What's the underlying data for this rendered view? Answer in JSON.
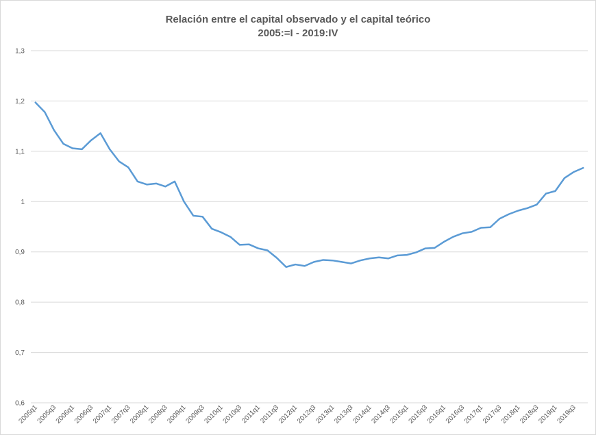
{
  "chart_data": {
    "type": "line",
    "title": "Relación entre el capital observado y el capital teórico",
    "subtitle": "2005:=I - 2019:IV",
    "xlabel": "",
    "ylabel": "",
    "ylim": [
      0.6,
      1.3
    ],
    "yticks": [
      "0,6",
      "0,7",
      "0,8",
      "0,9",
      "1",
      "1,1",
      "1,2",
      "1,3"
    ],
    "ytick_values": [
      0.6,
      0.7,
      0.8,
      0.9,
      1.0,
      1.1,
      1.2,
      1.3
    ],
    "grid": true,
    "legend": "none",
    "line_color": "#5b9bd5",
    "categories": [
      "2005q1",
      "2005q2",
      "2005q3",
      "2005q4",
      "2006q1",
      "2006q2",
      "2006q3",
      "2006q4",
      "2007q1",
      "2007q2",
      "2007q3",
      "2007q4",
      "2008q1",
      "2008q2",
      "2008q3",
      "2008q4",
      "2009q1",
      "2009q2",
      "2009q3",
      "2009q4",
      "2010q1",
      "2010q2",
      "2010q3",
      "2010q4",
      "2011q1",
      "2011q2",
      "2011q3",
      "2011q4",
      "2012q1",
      "2012q2",
      "2012q3",
      "2012q4",
      "2013q1",
      "2013q2",
      "2013q3",
      "2013q4",
      "2014q1",
      "2014q2",
      "2014q3",
      "2014q4",
      "2015q1",
      "2015q2",
      "2015q3",
      "2015q4",
      "2016q1",
      "2016q2",
      "2016q3",
      "2016q4",
      "2017q1",
      "2017q2",
      "2017q3",
      "2017q4",
      "2018q1",
      "2018q2",
      "2018q3",
      "2018q4",
      "2019q1",
      "2019q2",
      "2019q3",
      "2019q4"
    ],
    "xtick_labels": [
      "2005q1",
      "2005q3",
      "2006q1",
      "2006q3",
      "2007q1",
      "2007q3",
      "2008q1",
      "2008q3",
      "2009q1",
      "2009q3",
      "2010q1",
      "2010q3",
      "2011q1",
      "2011q3",
      "2012q1",
      "2012q3",
      "2013q1",
      "2013q3",
      "2014q1",
      "2014q3",
      "2015q1",
      "2015q3",
      "2016q1",
      "2016q3",
      "2017q1",
      "2017q3",
      "2018q1",
      "2018q3",
      "2019q1",
      "2019q3"
    ],
    "series": [
      {
        "values": [
          1.197,
          1.178,
          1.142,
          1.115,
          1.106,
          1.104,
          1.122,
          1.136,
          1.104,
          1.08,
          1.068,
          1.04,
          1.034,
          1.036,
          1.03,
          1.04,
          1.0,
          0.972,
          0.97,
          0.946,
          0.939,
          0.93,
          0.914,
          0.915,
          0.907,
          0.903,
          0.888,
          0.87,
          0.875,
          0.872,
          0.88,
          0.884,
          0.883,
          0.88,
          0.877,
          0.883,
          0.887,
          0.889,
          0.887,
          0.893,
          0.894,
          0.899,
          0.907,
          0.908,
          0.92,
          0.93,
          0.937,
          0.94,
          0.948,
          0.949,
          0.966,
          0.975,
          0.982,
          0.987,
          0.994,
          1.016,
          1.021,
          1.047,
          1.059,
          1.067
        ]
      }
    ]
  }
}
